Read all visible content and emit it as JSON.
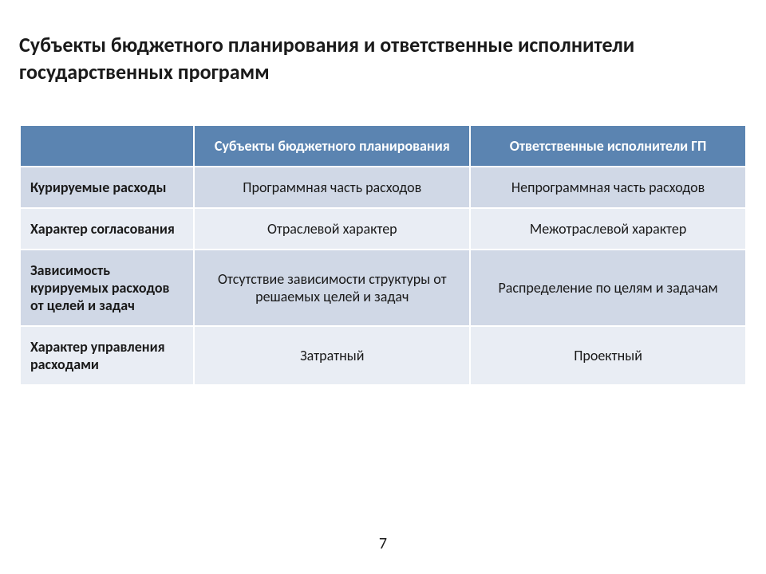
{
  "title": "Субъекты бюджетного планирования и ответственные исполнители государственных программ",
  "table": {
    "header_bg": "#5b84b1",
    "row_bg_odd": "#d0d8e6",
    "row_bg_even": "#e9edf4",
    "columns": [
      "",
      "Субъекты бюджетного планирования",
      "Ответственные исполнители ГП"
    ],
    "rows": [
      {
        "label": "Курируемые расходы",
        "c1": "Программная часть расходов",
        "c2": "Непрограммная часть расходов"
      },
      {
        "label": "Характер согласования",
        "c1": "Отраслевой характер",
        "c2": "Межотраслевой характер"
      },
      {
        "label": "Зависимость курируемых расходов от целей и задач",
        "c1": "Отсутствие зависимости структуры от решаемых целей и задач",
        "c2": "Распределение по целям и задачам"
      },
      {
        "label": "Характер управления расходами",
        "c1": "Затратный",
        "c2": "Проектный"
      }
    ]
  },
  "page_number": "7"
}
